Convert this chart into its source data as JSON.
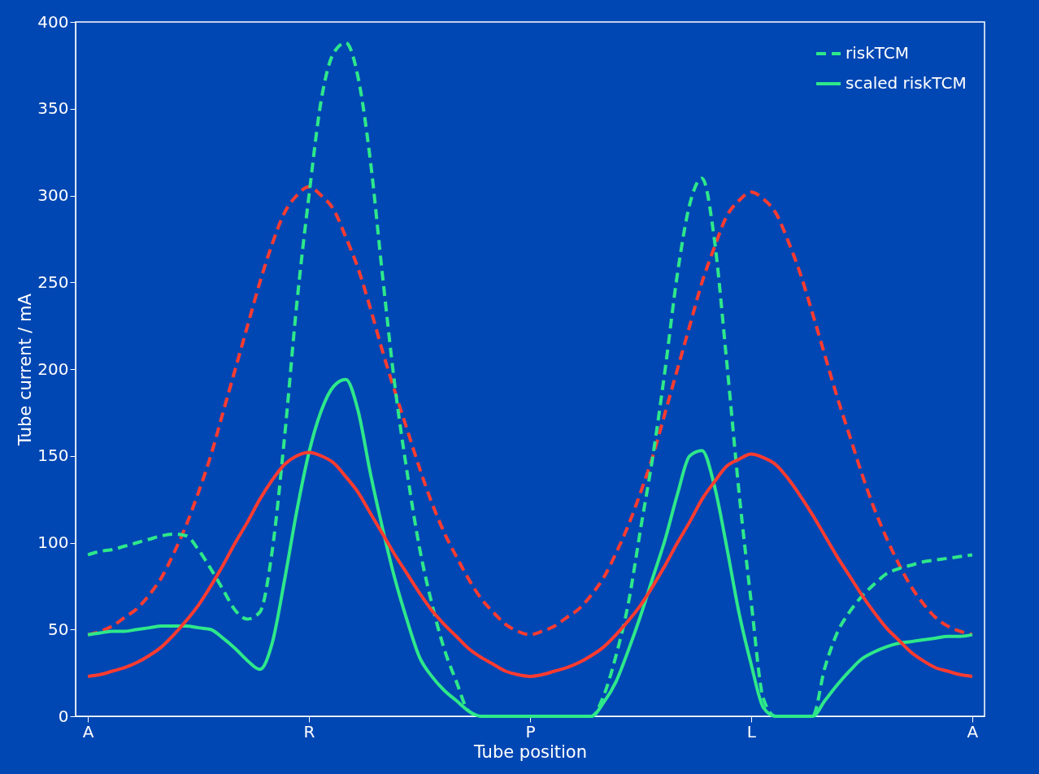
{
  "chart_data": {
    "type": "line",
    "xlabel": "Tube position",
    "ylabel": "Tube current / mA",
    "categories": [
      "A",
      null,
      null,
      null,
      null,
      null,
      null,
      null,
      null,
      null,
      null,
      null,
      null,
      null,
      null,
      null,
      null,
      null,
      "R",
      null,
      null,
      null,
      null,
      null,
      null,
      null,
      null,
      null,
      null,
      null,
      null,
      null,
      null,
      null,
      null,
      null,
      "P",
      null,
      null,
      null,
      null,
      null,
      null,
      null,
      null,
      null,
      null,
      null,
      null,
      null,
      null,
      null,
      null,
      null,
      "L",
      null,
      null,
      null,
      null,
      null,
      null,
      null,
      null,
      null,
      null,
      null,
      null,
      null,
      null,
      null,
      null,
      null,
      "A"
    ],
    "ylim": [
      0,
      400
    ],
    "yticks": [
      0,
      50,
      100,
      150,
      200,
      250,
      300,
      350,
      400
    ],
    "grid": false,
    "legend": "top right",
    "series": [
      {
        "color": "#ff3b30",
        "line_style": "dashed",
        "values": [
          47,
          49,
          52,
          57,
          62,
          70,
          80,
          94,
          110,
          129,
          150,
          175,
          200,
          225,
          250,
          272,
          290,
          300,
          305,
          300,
          292,
          276,
          258,
          235,
          210,
          187,
          165,
          143,
          123,
          106,
          92,
          79,
          68,
          60,
          53,
          49,
          47,
          49,
          52,
          57,
          62,
          70,
          80,
          94,
          110,
          129,
          150,
          175,
          200,
          225,
          250,
          270,
          288,
          297,
          302,
          298,
          290,
          274,
          255,
          232,
          208,
          184,
          162,
          140,
          120,
          103,
          88,
          75,
          65,
          57,
          52,
          49,
          47
        ]
      },
      {
        "name": "riskTCM",
        "color": "#2ee88a",
        "line_style": "dashed",
        "values": [
          93,
          95,
          96,
          98,
          100,
          102,
          104,
          105,
          104,
          96,
          85,
          73,
          61,
          56,
          60,
          95,
          160,
          237,
          300,
          355,
          382,
          388,
          368,
          320,
          253,
          190,
          140,
          97,
          65,
          39,
          20,
          3,
          0,
          0,
          0,
          0,
          0,
          0,
          0,
          0,
          0,
          0,
          12,
          35,
          65,
          108,
          150,
          200,
          255,
          295,
          310,
          275,
          205,
          130,
          66,
          10,
          0,
          0,
          0,
          0,
          28,
          48,
          60,
          69,
          76,
          82,
          85,
          87,
          89,
          90,
          91,
          92,
          93
        ]
      },
      {
        "name": "scaled riskTCM",
        "color": "#2ee88a",
        "line_style": "solid",
        "values": [
          47,
          48,
          49,
          49,
          50,
          51,
          52,
          52,
          52,
          51,
          50,
          45,
          39,
          32,
          27,
          42,
          78,
          118,
          152,
          176,
          190,
          194,
          176,
          140,
          108,
          79,
          55,
          34,
          23,
          15,
          9,
          3,
          0,
          0,
          0,
          0,
          0,
          0,
          0,
          0,
          0,
          0,
          8,
          20,
          38,
          58,
          80,
          102,
          128,
          150,
          153,
          133,
          98,
          60,
          30,
          5,
          0,
          0,
          0,
          0,
          9,
          18,
          26,
          33,
          37,
          40,
          42,
          43,
          44,
          45,
          46,
          46,
          47
        ]
      },
      {
        "color": "#ff3b30",
        "line_style": "solid",
        "values": [
          23,
          24,
          26,
          28,
          31,
          35,
          40,
          47,
          55,
          64,
          75,
          87,
          100,
          112,
          125,
          136,
          145,
          150,
          152,
          150,
          146,
          138,
          129,
          117,
          105,
          93,
          82,
          71,
          61,
          53,
          46,
          39,
          34,
          30,
          26,
          24,
          23,
          24,
          26,
          28,
          31,
          35,
          40,
          47,
          55,
          64,
          75,
          87,
          100,
          112,
          125,
          135,
          144,
          148,
          151,
          149,
          145,
          137,
          127,
          116,
          104,
          92,
          81,
          70,
          60,
          51,
          44,
          37,
          32,
          28,
          26,
          24,
          23
        ]
      }
    ]
  }
}
